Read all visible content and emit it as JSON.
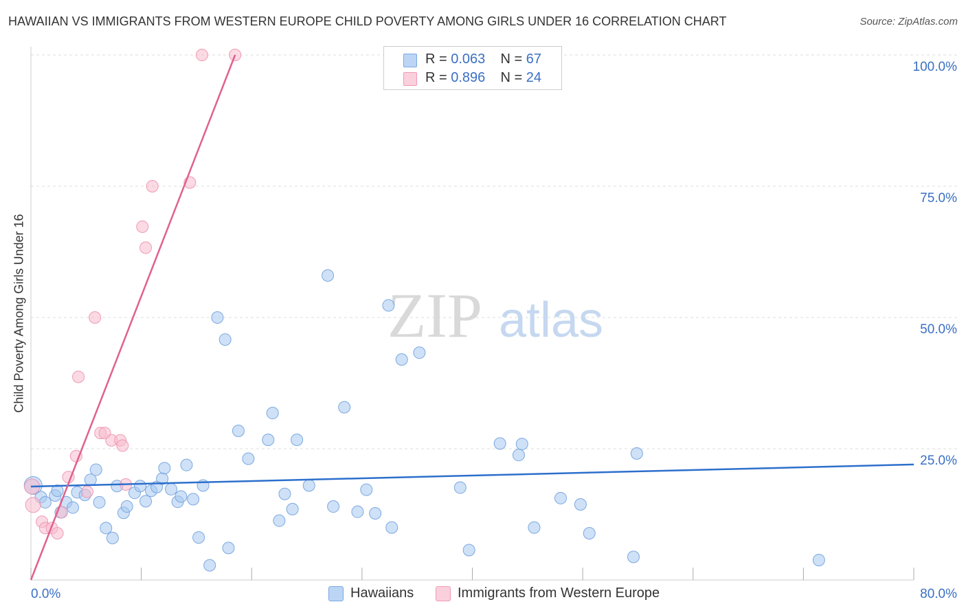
{
  "title": "HAWAIIAN VS IMMIGRANTS FROM WESTERN EUROPE CHILD POVERTY AMONG GIRLS UNDER 16 CORRELATION CHART",
  "source": "Source: ZipAtlas.com",
  "watermark": {
    "zip": "ZIP",
    "atlas": "atlas"
  },
  "legend": {
    "rows": [
      {
        "r_label": "R =",
        "r_value": "0.063",
        "n_label": "N =",
        "n_value": "67"
      },
      {
        "r_label": "R =",
        "r_value": "0.896",
        "n_label": "N =",
        "n_value": "24"
      }
    ]
  },
  "colors": {
    "blue_fill": "#a8c8f0",
    "blue_stroke": "#7aa8e0",
    "blue_line": "#2c6fcc",
    "pink_fill": "#f8bccd",
    "pink_stroke": "#ef9ab4",
    "pink_line": "#e0608e",
    "axis_text": "#3a6fc4",
    "grid": "#dddddd"
  },
  "chart_data": {
    "type": "scatter",
    "title": "HAWAIIAN VS IMMIGRANTS FROM WESTERN EUROPE CHILD POVERTY AMONG GIRLS UNDER 16 CORRELATION CHART",
    "xlabel": "",
    "ylabel": "Child Poverty Among Girls Under 16",
    "xlim": [
      0,
      80
    ],
    "ylim": [
      0,
      100
    ],
    "x_tick_labels": {
      "min": "0.0%",
      "max": "80.0%"
    },
    "y_ticks": [
      {
        "value": 25,
        "label": "25.0%"
      },
      {
        "value": 50,
        "label": "50.0%"
      },
      {
        "value": 75,
        "label": "75.0%"
      },
      {
        "value": 100,
        "label": "100.0%"
      }
    ],
    "legend_position": "top-center",
    "series": [
      {
        "name": "Hawaiians",
        "color": "#a8c8f0",
        "trend": {
          "x": [
            0,
            80
          ],
          "y": [
            17.8,
            22.0
          ]
        },
        "points": [
          [
            0.2,
            18.0
          ],
          [
            0.9,
            15.8
          ],
          [
            1.3,
            14.8
          ],
          [
            2.2,
            16.1
          ],
          [
            2.4,
            17.0
          ],
          [
            2.7,
            12.9
          ],
          [
            3.2,
            14.8
          ],
          [
            3.8,
            13.8
          ],
          [
            4.2,
            16.7
          ],
          [
            4.9,
            16.2
          ],
          [
            5.4,
            19.1
          ],
          [
            5.9,
            21.0
          ],
          [
            6.2,
            14.8
          ],
          [
            6.8,
            9.9
          ],
          [
            7.4,
            8.0
          ],
          [
            7.8,
            17.9
          ],
          [
            8.4,
            12.8
          ],
          [
            8.7,
            14.0
          ],
          [
            9.4,
            16.6
          ],
          [
            9.9,
            17.9
          ],
          [
            10.4,
            15.0
          ],
          [
            10.9,
            17.0
          ],
          [
            11.4,
            17.7
          ],
          [
            11.9,
            19.3
          ],
          [
            12.1,
            21.3
          ],
          [
            12.7,
            17.3
          ],
          [
            13.3,
            14.9
          ],
          [
            13.6,
            15.9
          ],
          [
            14.1,
            21.9
          ],
          [
            14.7,
            15.4
          ],
          [
            15.2,
            8.1
          ],
          [
            15.6,
            18.0
          ],
          [
            16.2,
            2.8
          ],
          [
            16.9,
            50.0
          ],
          [
            17.6,
            45.8
          ],
          [
            17.9,
            6.1
          ],
          [
            18.8,
            28.4
          ],
          [
            19.7,
            23.1
          ],
          [
            21.5,
            26.7
          ],
          [
            21.9,
            31.8
          ],
          [
            22.5,
            11.3
          ],
          [
            23.0,
            16.4
          ],
          [
            23.7,
            13.5
          ],
          [
            24.1,
            26.7
          ],
          [
            25.2,
            18.0
          ],
          [
            26.9,
            58.0
          ],
          [
            27.4,
            14.0
          ],
          [
            28.4,
            32.9
          ],
          [
            29.6,
            13.0
          ],
          [
            30.4,
            17.2
          ],
          [
            31.2,
            12.7
          ],
          [
            32.4,
            52.3
          ],
          [
            32.7,
            10.0
          ],
          [
            33.6,
            42.0
          ],
          [
            35.2,
            43.3
          ],
          [
            38.9,
            17.6
          ],
          [
            39.7,
            5.7
          ],
          [
            42.5,
            26.0
          ],
          [
            44.2,
            23.8
          ],
          [
            44.5,
            25.9
          ],
          [
            45.6,
            10.0
          ],
          [
            48.0,
            15.6
          ],
          [
            49.8,
            14.4
          ],
          [
            50.6,
            8.9
          ],
          [
            54.6,
            4.4
          ],
          [
            54.9,
            24.1
          ],
          [
            71.4,
            3.8
          ]
        ]
      },
      {
        "name": "Immigrants from Western Europe",
        "color": "#f8bccd",
        "trend": {
          "x": [
            0,
            18.5
          ],
          "y": [
            0,
            100
          ]
        },
        "points": [
          [
            0.1,
            17.8
          ],
          [
            0.2,
            14.3
          ],
          [
            1.0,
            11.1
          ],
          [
            1.3,
            9.9
          ],
          [
            1.9,
            9.9
          ],
          [
            2.4,
            8.9
          ],
          [
            2.8,
            12.9
          ],
          [
            3.4,
            19.6
          ],
          [
            4.1,
            23.6
          ],
          [
            4.3,
            38.7
          ],
          [
            5.1,
            16.8
          ],
          [
            5.8,
            50.0
          ],
          [
            6.3,
            28.0
          ],
          [
            6.7,
            28.0
          ],
          [
            7.3,
            26.6
          ],
          [
            8.1,
            26.6
          ],
          [
            8.3,
            25.6
          ],
          [
            8.6,
            18.2
          ],
          [
            10.1,
            67.3
          ],
          [
            10.4,
            63.3
          ],
          [
            11.0,
            75.0
          ],
          [
            14.4,
            75.7
          ],
          [
            15.5,
            100.0
          ],
          [
            18.5,
            100.0
          ]
        ]
      }
    ]
  },
  "bottom_legend": {
    "series1": "Hawaiians",
    "series2": "Immigrants from Western Europe"
  }
}
